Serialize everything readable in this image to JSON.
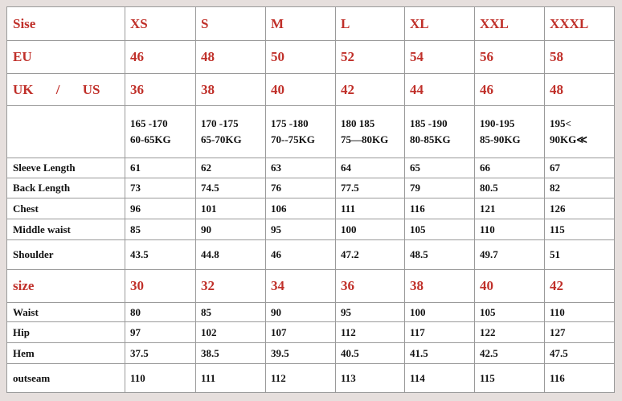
{
  "table": {
    "rows": [
      [
        "Sise",
        "XS",
        "S",
        "M",
        "L",
        "XL",
        "XXL",
        "XXXL"
      ],
      [
        "EU",
        "46",
        "48",
        "50",
        "52",
        "54",
        "56",
        "58"
      ],
      [
        "UK / US",
        "36",
        "38",
        "40",
        "42",
        "44",
        "46",
        "48"
      ],
      [
        null,
        [
          "165 -170",
          "60-65KG"
        ],
        [
          "170 -175",
          "65-70KG"
        ],
        [
          "175 -180",
          "70--75KG"
        ],
        [
          "180 185",
          "75—80KG"
        ],
        [
          "185 -190",
          "80-85KG"
        ],
        [
          "190-195",
          "85-90KG"
        ],
        [
          "195<",
          "90KG≪"
        ]
      ],
      [
        "Sleeve Length",
        "61",
        "62",
        "63",
        "64",
        "65",
        "66",
        "67"
      ],
      [
        "Back Length",
        "73",
        "74.5",
        "76",
        "77.5",
        "79",
        "80.5",
        "82"
      ],
      [
        "Chest",
        "96",
        "101",
        "106",
        "111",
        "116",
        "121",
        "126"
      ],
      [
        "Middle waist",
        "85",
        "90",
        "95",
        "100",
        "105",
        "110",
        "115"
      ],
      [
        "Shoulder",
        "43.5",
        "44.8",
        "46",
        "47.2",
        "48.5",
        "49.7",
        "51"
      ],
      [
        "size",
        "30",
        "32",
        "34",
        "36",
        "38",
        "40",
        "42"
      ],
      [
        "Waist",
        "80",
        "85",
        "90",
        "95",
        "100",
        "105",
        "110"
      ],
      [
        "Hip",
        "97",
        "102",
        "107",
        "112",
        "117",
        "122",
        "127"
      ],
      [
        "Hem",
        "37.5",
        "38.5",
        "39.5",
        "40.5",
        "41.5",
        "42.5",
        "47.5"
      ],
      [
        "outseam",
        "110",
        "111",
        "112",
        "113",
        "114",
        "115",
        "116"
      ]
    ]
  }
}
